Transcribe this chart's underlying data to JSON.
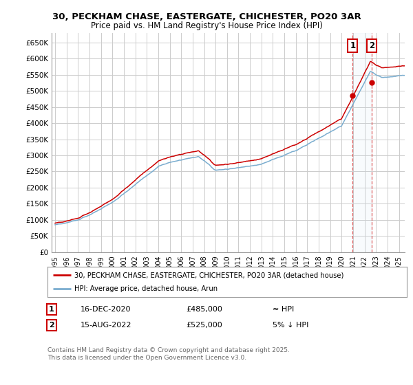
{
  "title_line1": "30, PECKHAM CHASE, EASTERGATE, CHICHESTER, PO20 3AR",
  "title_line2": "Price paid vs. HM Land Registry's House Price Index (HPI)",
  "ylabel_ticks": [
    "£0",
    "£50K",
    "£100K",
    "£150K",
    "£200K",
    "£250K",
    "£300K",
    "£350K",
    "£400K",
    "£450K",
    "£500K",
    "£550K",
    "£600K",
    "£650K"
  ],
  "ytick_values": [
    0,
    50000,
    100000,
    150000,
    200000,
    250000,
    300000,
    350000,
    400000,
    450000,
    500000,
    550000,
    600000,
    650000
  ],
  "xlim_start": 1994.7,
  "xlim_end": 2025.5,
  "ylim_min": 0,
  "ylim_max": 680000,
  "line1_color": "#cc0000",
  "line2_color": "#7aadcf",
  "background_color": "#ffffff",
  "grid_color": "#cccccc",
  "sale1_date": 2020.958,
  "sale1_price": 485000,
  "sale2_date": 2022.622,
  "sale2_price": 525000,
  "legend_label1": "30, PECKHAM CHASE, EASTERGATE, CHICHESTER, PO20 3AR (detached house)",
  "legend_label2": "HPI: Average price, detached house, Arun",
  "annotation1_label": "1",
  "annotation2_label": "2",
  "note1_num": "1",
  "note1_date": "16-DEC-2020",
  "note1_price": "£485,000",
  "note1_rel": "≈ HPI",
  "note2_num": "2",
  "note2_date": "15-AUG-2022",
  "note2_price": "£525,000",
  "note2_rel": "5% ↓ HPI",
  "footer": "Contains HM Land Registry data © Crown copyright and database right 2025.\nThis data is licensed under the Open Government Licence v3.0."
}
